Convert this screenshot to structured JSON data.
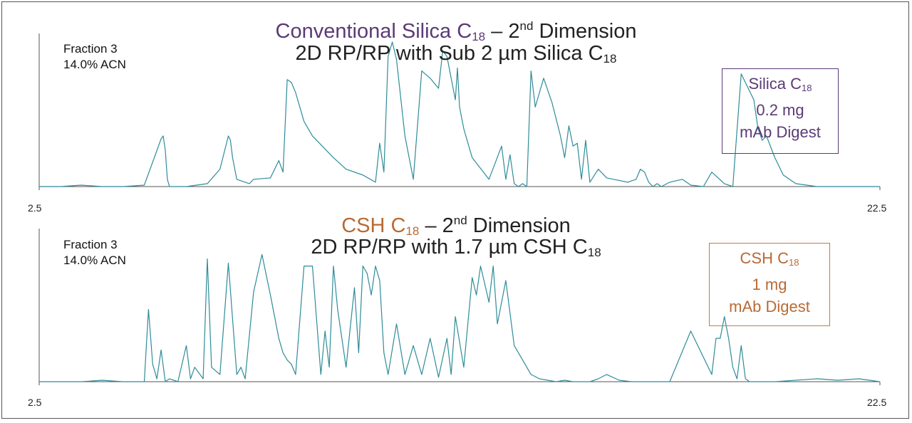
{
  "chart_data": [
    {
      "type": "line",
      "title_parts": {
        "prefix": "Conventional Silica C",
        "sub": "18",
        "dash": " – 2",
        "sup": "nd",
        "suffix": " Dimension"
      },
      "subtitle_parts": {
        "prefix": "2D RP/RP with Sub 2 µm Silica C",
        "sub": "18"
      },
      "annotation": [
        "Fraction 3",
        "14.0% ACN"
      ],
      "legend": {
        "line1_prefix": "Silica C",
        "line1_sub": "18",
        "line2": "0.2 mg",
        "line3": "mAb Digest"
      },
      "xlim": [
        2.5,
        22.5
      ],
      "ylim": [
        0,
        1
      ],
      "xtick_labels": [
        "2.5",
        "22.5"
      ],
      "color": "#2e8c99",
      "series": [
        {
          "x": [
            2.5,
            3.0,
            3.5,
            4.0,
            4.5,
            5.0,
            5.4,
            5.45,
            5.5,
            5.55,
            5.6,
            6.0,
            6.5,
            6.8,
            7.0,
            7.05,
            7.1,
            7.2,
            7.5,
            7.6,
            8.0,
            8.2,
            8.3,
            8.4,
            8.5,
            8.6,
            8.7,
            8.8,
            9.0,
            9.5,
            9.8,
            10.2,
            10.5,
            10.6,
            10.7,
            10.8,
            10.9,
            11.0,
            11.2,
            11.4,
            11.6,
            11.8,
            12.0,
            12.1,
            12.2,
            12.3,
            12.4,
            12.45,
            12.5,
            12.6,
            12.8,
            13.2,
            13.5,
            13.6,
            13.7,
            13.8,
            13.9,
            14.0,
            14.1,
            14.2,
            14.3,
            14.5,
            14.7,
            14.9,
            15.0,
            15.1,
            15.2,
            15.3,
            15.4,
            15.5,
            15.6,
            15.8,
            16.0,
            16.5,
            16.7,
            16.8,
            16.9,
            17.0,
            17.1,
            17.2,
            17.3,
            17.5,
            17.8,
            18.0,
            18.3,
            18.5,
            18.8,
            19.0,
            19.2,
            19.5,
            19.6,
            19.7,
            19.8,
            20.0,
            20.2,
            20.5,
            21.0,
            22.0,
            22.5
          ],
          "y": [
            0.0,
            0.0,
            0.01,
            0.0,
            0.0,
            0.01,
            0.33,
            0.35,
            0.25,
            0.05,
            0.0,
            0.0,
            0.02,
            0.12,
            0.35,
            0.32,
            0.2,
            0.05,
            0.02,
            0.05,
            0.06,
            0.18,
            0.1,
            0.74,
            0.72,
            0.65,
            0.55,
            0.45,
            0.35,
            0.2,
            0.12,
            0.08,
            0.03,
            0.3,
            0.1,
            0.9,
            1.0,
            0.88,
            0.35,
            0.05,
            0.8,
            0.75,
            0.68,
            0.94,
            0.9,
            0.75,
            0.6,
            0.82,
            0.55,
            0.4,
            0.2,
            0.05,
            0.28,
            0.05,
            0.22,
            0.02,
            0.0,
            0.02,
            0.0,
            0.8,
            0.55,
            0.75,
            0.58,
            0.35,
            0.2,
            0.42,
            0.28,
            0.3,
            0.05,
            0.32,
            0.03,
            0.12,
            0.06,
            0.03,
            0.05,
            0.12,
            0.1,
            0.03,
            0.0,
            0.02,
            0.0,
            0.03,
            0.05,
            0.01,
            0.0,
            0.1,
            0.02,
            0.0,
            0.78,
            0.6,
            0.4,
            0.32,
            0.35,
            0.2,
            0.08,
            0.02,
            0.0,
            0.0,
            0.0
          ]
        }
      ]
    },
    {
      "type": "line",
      "title_parts": {
        "prefix": "CSH C",
        "sub": "18",
        "dash": " – 2",
        "sup": "nd",
        "suffix": " Dimension"
      },
      "subtitle_parts": {
        "prefix": "2D RP/RP with 1.7 µm CSH C",
        "sub": "18"
      },
      "annotation": [
        "Fraction 3",
        "14.0% ACN"
      ],
      "legend": {
        "line1_prefix": "CSH C",
        "line1_sub": "18",
        "line2": "1 mg",
        "line3": "mAb Digest"
      },
      "xlim": [
        2.5,
        22.5
      ],
      "ylim": [
        0,
        1
      ],
      "xtick_labels": [
        "2.5",
        "22.5"
      ],
      "color": "#2e8c99",
      "series": [
        {
          "x": [
            2.5,
            3.5,
            4.0,
            4.5,
            5.0,
            5.1,
            5.2,
            5.3,
            5.4,
            5.5,
            5.6,
            5.8,
            6.0,
            6.1,
            6.2,
            6.4,
            6.5,
            6.6,
            6.8,
            7.0,
            7.2,
            7.3,
            7.4,
            7.6,
            7.8,
            8.0,
            8.1,
            8.2,
            8.3,
            8.4,
            8.5,
            8.6,
            8.8,
            9.0,
            9.2,
            9.3,
            9.4,
            9.5,
            9.6,
            9.8,
            10.0,
            10.1,
            10.2,
            10.3,
            10.4,
            10.5,
            10.6,
            10.7,
            10.8,
            11.0,
            11.2,
            11.4,
            11.6,
            11.8,
            12.0,
            12.2,
            12.3,
            12.4,
            12.6,
            12.8,
            12.9,
            13.0,
            13.2,
            13.3,
            13.4,
            13.6,
            13.8,
            14.0,
            14.2,
            14.4,
            14.6,
            14.8,
            15.0,
            15.2,
            15.4,
            15.6,
            15.8,
            16.0,
            16.3,
            16.6,
            17.0,
            17.5,
            18.0,
            18.5,
            18.6,
            18.7,
            18.8,
            18.9,
            19.0,
            19.1,
            19.2,
            19.3,
            19.4,
            19.5,
            20.0,
            21.0,
            21.5,
            22.0,
            22.5
          ],
          "y": [
            0.0,
            0.0,
            0.01,
            0.0,
            0.0,
            0.5,
            0.12,
            0.02,
            0.22,
            0.0,
            0.02,
            0.0,
            0.25,
            0.02,
            0.1,
            0.02,
            0.85,
            0.1,
            0.05,
            0.82,
            0.05,
            0.1,
            0.02,
            0.62,
            0.88,
            0.6,
            0.45,
            0.3,
            0.2,
            0.15,
            0.12,
            0.05,
            0.8,
            0.8,
            0.05,
            0.35,
            0.1,
            0.8,
            0.5,
            0.1,
            0.65,
            0.2,
            0.8,
            0.75,
            0.6,
            0.8,
            0.7,
            0.2,
            0.05,
            0.4,
            0.05,
            0.25,
            0.05,
            0.3,
            0.03,
            0.3,
            0.05,
            0.45,
            0.1,
            0.72,
            0.6,
            0.8,
            0.55,
            0.8,
            0.4,
            0.7,
            0.25,
            0.15,
            0.05,
            0.02,
            0.01,
            0.0,
            0.01,
            0.0,
            0.0,
            0.0,
            0.02,
            0.05,
            0.01,
            0.0,
            0.0,
            0.0,
            0.35,
            0.05,
            0.3,
            0.3,
            0.45,
            0.3,
            0.1,
            0.02,
            0.25,
            0.02,
            0.0,
            0.0,
            0.0,
            0.02,
            0.01,
            0.02,
            0.0
          ]
        }
      ]
    }
  ]
}
